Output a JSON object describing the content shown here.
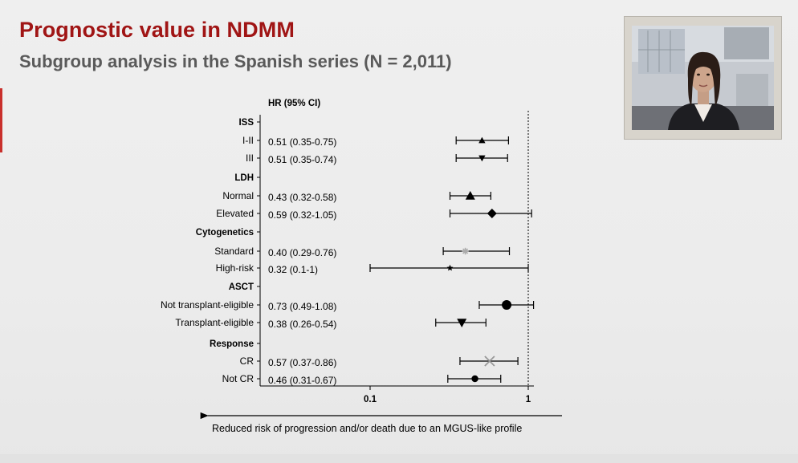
{
  "slide": {
    "title": "Prognostic value in NDMM",
    "subtitle": "Subgroup analysis in the Spanish series (N = 2,011)",
    "accent_color": "#a01515"
  },
  "webcam": {
    "icon": "presenter-video"
  },
  "chart_data": {
    "type": "forest",
    "column_header": "HR (95% CI)",
    "x_scale": "log",
    "x_range": [
      0.055,
      1.25
    ],
    "reference_line": 1,
    "x_ticks": [
      {
        "value": 0.1,
        "label": "0.1"
      },
      {
        "value": 1,
        "label": "1"
      }
    ],
    "footnote": "Reduced risk of progression and/or death due to an MGUS-like profile",
    "rows": [
      {
        "type": "header",
        "label": "ISS"
      },
      {
        "type": "item",
        "label": "I-II",
        "text": "0.51 (0.35-0.75)",
        "hr": 0.51,
        "low": 0.35,
        "high": 0.75,
        "marker": "triangle-up",
        "color": "#000000",
        "size": "small"
      },
      {
        "type": "item",
        "label": "III",
        "text": "0.51 (0.35-0.74)",
        "hr": 0.51,
        "low": 0.35,
        "high": 0.74,
        "marker": "triangle-down",
        "color": "#000000",
        "size": "small"
      },
      {
        "type": "header",
        "label": "LDH"
      },
      {
        "type": "item",
        "label": "Normal",
        "text": "0.43 (0.32-0.58)",
        "hr": 0.43,
        "low": 0.32,
        "high": 0.58,
        "marker": "triangle-up",
        "color": "#000000",
        "size": "large"
      },
      {
        "type": "item",
        "label": "Elevated",
        "text": "0.59 (0.32-1.05)",
        "hr": 0.59,
        "low": 0.32,
        "high": 1.05,
        "marker": "diamond",
        "color": "#000000",
        "size": "large"
      },
      {
        "type": "header",
        "label": "Cytogenetics"
      },
      {
        "type": "item",
        "label": "Standard",
        "text": "0.40 (0.29-0.76)",
        "hr": 0.4,
        "low": 0.29,
        "high": 0.76,
        "marker": "asterisk",
        "color": "#aaaaaa",
        "size": "small"
      },
      {
        "type": "item",
        "label": "High-risk",
        "text": "0.32 (0.1-1)",
        "hr": 0.32,
        "low": 0.1,
        "high": 1.0,
        "marker": "star",
        "color": "#000000",
        "size": "small"
      },
      {
        "type": "header",
        "label": "ASCT"
      },
      {
        "type": "item",
        "label": "Not transplant-eligible",
        "text": "0.73 (0.49-1.08)",
        "hr": 0.73,
        "low": 0.49,
        "high": 1.08,
        "marker": "circle",
        "color": "#000000",
        "size": "large"
      },
      {
        "type": "item",
        "label": "Transplant-eligible",
        "text": "0.38 (0.26-0.54)",
        "hr": 0.38,
        "low": 0.26,
        "high": 0.54,
        "marker": "triangle-down",
        "color": "#000000",
        "size": "large"
      },
      {
        "type": "header",
        "label": "Response"
      },
      {
        "type": "item",
        "label": "CR",
        "text": "0.57 (0.37-0.86)",
        "hr": 0.57,
        "low": 0.37,
        "high": 0.86,
        "marker": "cross",
        "color": "#999999",
        "size": "large"
      },
      {
        "type": "item",
        "label": "Not CR",
        "text": "0.46 (0.31-0.67)",
        "hr": 0.46,
        "low": 0.31,
        "high": 0.67,
        "marker": "circle",
        "color": "#000000",
        "size": "small"
      }
    ]
  }
}
